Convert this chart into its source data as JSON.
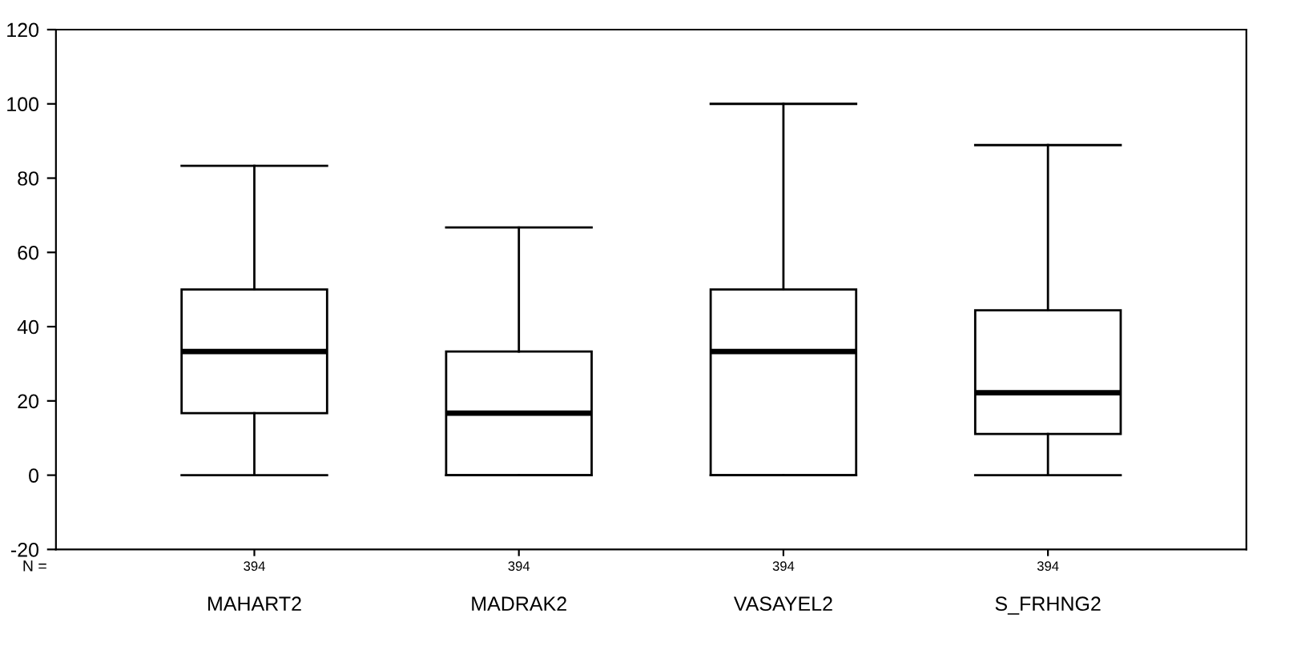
{
  "chart_data": {
    "type": "box",
    "categories": [
      "MAHART2",
      "MADRAK2",
      "VASAYEL2",
      "S_FRHNG2"
    ],
    "boxes": [
      {
        "low": 0,
        "q1": 16.7,
        "median": 33.3,
        "q3": 50,
        "high": 83.3
      },
      {
        "low": 0,
        "q1": 0,
        "median": 16.7,
        "q3": 33.3,
        "high": 66.7
      },
      {
        "low": 0,
        "q1": 0,
        "median": 33.3,
        "q3": 50,
        "high": 100
      },
      {
        "low": 0,
        "q1": 11.1,
        "median": 22.2,
        "q3": 44.4,
        "high": 88.9
      }
    ],
    "color": "#ffffff",
    "ylim": [
      -20,
      120
    ],
    "yticks": [
      -20,
      0,
      20,
      40,
      60,
      80,
      100,
      120
    ],
    "grid": false,
    "annotations": [
      "N =",
      "394",
      "394",
      "394",
      "394"
    ]
  }
}
